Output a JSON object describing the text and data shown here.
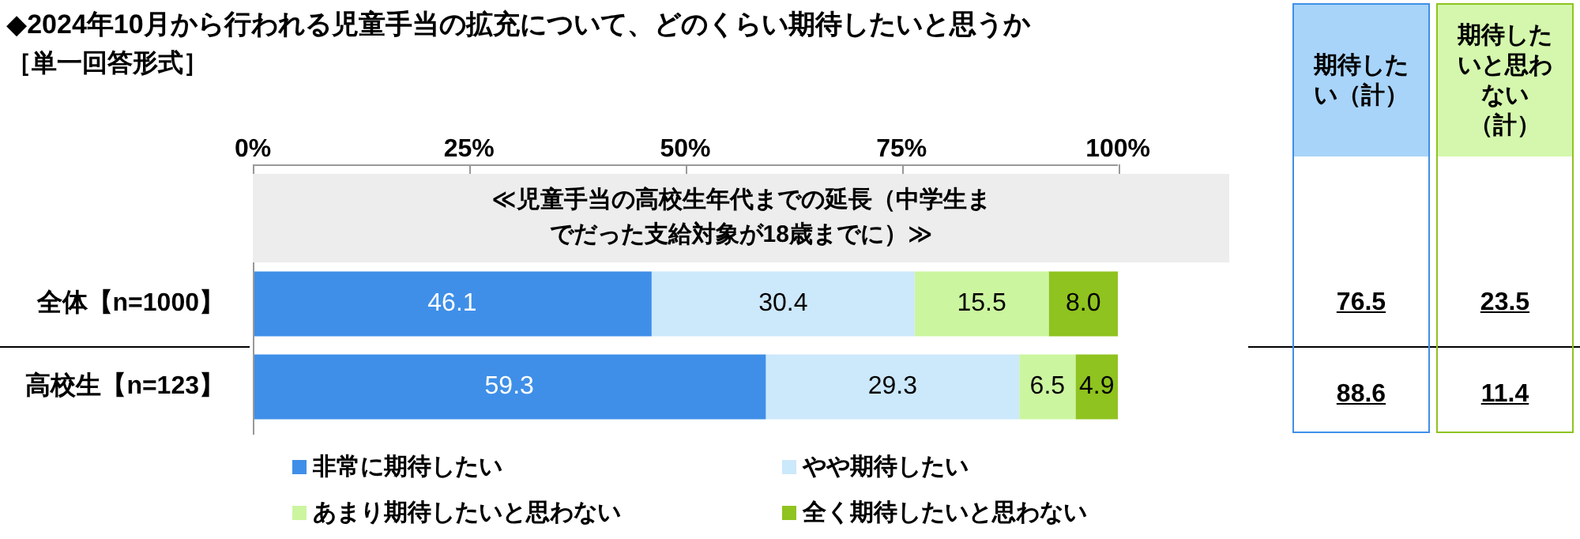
{
  "chart_data": {
    "type": "bar",
    "orientation": "horizontal",
    "stacked": true,
    "title": "◆2024年10月から行われる児童手当の拡充について、どのくらい期待したいと思うか",
    "subtitle": "［単一回答形式］",
    "categories": [
      "全体【n=1000】",
      "高校生【n=123】"
    ],
    "series": [
      {
        "name": "非常に期待したい",
        "color": "#3f8fe8",
        "values": [
          46.1,
          59.3
        ],
        "value_labels": [
          "46.1",
          "59.3"
        ]
      },
      {
        "name": "やや期待したい",
        "color": "#cce8fb",
        "values": [
          30.4,
          29.3
        ],
        "value_labels": [
          "30.4",
          "29.3"
        ]
      },
      {
        "name": "あまり期待したいと思わない",
        "color": "#ccf5a0",
        "values": [
          15.5,
          6.5
        ],
        "value_labels": [
          "15.5",
          "6.5"
        ]
      },
      {
        "name": "全く期待したいと思わない",
        "color": "#8fc31f",
        "values": [
          8.0,
          4.9
        ],
        "value_labels": [
          "8.0",
          "4.9"
        ]
      }
    ],
    "xlim": [
      0,
      100
    ],
    "xticks": [
      {
        "value": 0,
        "label": "0%"
      },
      {
        "value": 25,
        "label": "25%"
      },
      {
        "value": 50,
        "label": "50%"
      },
      {
        "value": 75,
        "label": "75%"
      },
      {
        "value": 100,
        "label": "100%"
      }
    ],
    "grid": false,
    "legend": "bottom",
    "annotations": [
      "≪児童手当の高校生年代までの延長（中学生までだった支給対象が18歳までに）≫",
      "期待したい（計）",
      "76.5",
      "88.6",
      "期待したいと思わない（計）",
      "23.5",
      "11.4"
    ]
  }
}
